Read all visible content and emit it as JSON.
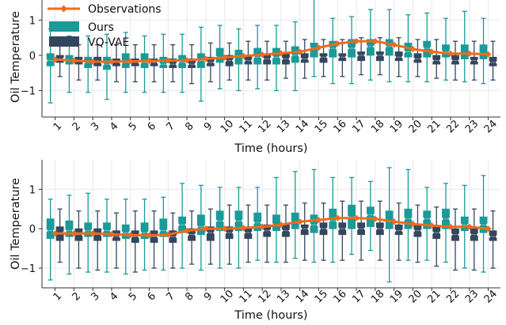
{
  "colors": {
    "ours": "#1a9a98",
    "vqvae": "#34465e",
    "observations": "#f26a1b",
    "grid": "#e9e9e9",
    "axis": "#333333"
  },
  "legend": {
    "placement": "top-left",
    "items": [
      {
        "label": "Observations",
        "marker": "line-diamond",
        "color_key": "observations"
      },
      {
        "label": "Ours",
        "marker": "box",
        "color_key": "ours"
      },
      {
        "label": "VQ-VAE",
        "marker": "box",
        "color_key": "vqvae"
      }
    ]
  },
  "chart_data": [
    {
      "type": "box",
      "xlabel": "Time (hours)",
      "ylabel": "Oil Temperature",
      "ylim": [
        -1.75,
        1.75
      ],
      "yticks": [
        -1,
        0,
        1
      ],
      "categories": [
        "1",
        "2",
        "3",
        "4",
        "5",
        "6",
        "7",
        "8",
        "9",
        "10",
        "11",
        "12",
        "13",
        "14",
        "15",
        "16",
        "17",
        "18",
        "19",
        "20",
        "21",
        "22",
        "23",
        "24"
      ],
      "grid": true,
      "legend": "top-left",
      "observations": {
        "name": "Observations",
        "values": [
          -0.12,
          -0.15,
          -0.18,
          -0.18,
          -0.17,
          -0.16,
          -0.15,
          -0.14,
          -0.1,
          -0.06,
          -0.02,
          0.02,
          0.06,
          0.1,
          0.22,
          0.33,
          0.4,
          0.4,
          0.3,
          0.18,
          0.1,
          0.05,
          0.05,
          0.03
        ]
      },
      "series": [
        {
          "name": "Ours",
          "stats": [
            {
              "wlo": -1.35,
              "q1": -0.3,
              "med": -0.15,
              "q3": 0.05,
              "whi": 0.75
            },
            {
              "wlo": -1.05,
              "q1": -0.25,
              "med": -0.15,
              "q3": 0.0,
              "whi": 0.55
            },
            {
              "wlo": -1.05,
              "q1": -0.35,
              "med": -0.2,
              "q3": -0.05,
              "whi": 0.55
            },
            {
              "wlo": -1.25,
              "q1": -0.4,
              "med": -0.25,
              "q3": -0.05,
              "whi": 0.6
            },
            {
              "wlo": -1.05,
              "q1": -0.35,
              "med": -0.2,
              "q3": 0.05,
              "whi": 0.65
            },
            {
              "wlo": -1.05,
              "q1": -0.35,
              "med": -0.2,
              "q3": 0.05,
              "whi": 0.55
            },
            {
              "wlo": -1.05,
              "q1": -0.35,
              "med": -0.25,
              "q3": -0.05,
              "whi": 0.6
            },
            {
              "wlo": -1.05,
              "q1": -0.35,
              "med": -0.2,
              "q3": 0.0,
              "whi": 0.6
            },
            {
              "wlo": -1.3,
              "q1": -0.35,
              "med": -0.15,
              "q3": 0.05,
              "whi": 0.8
            },
            {
              "wlo": -0.95,
              "q1": -0.2,
              "med": -0.05,
              "q3": 0.2,
              "whi": 0.85
            },
            {
              "wlo": -1.0,
              "q1": -0.25,
              "med": -0.05,
              "q3": 0.15,
              "whi": 0.75
            },
            {
              "wlo": -0.95,
              "q1": -0.25,
              "med": -0.05,
              "q3": 0.2,
              "whi": 0.85
            },
            {
              "wlo": -1.0,
              "q1": -0.25,
              "med": -0.05,
              "q3": 0.2,
              "whi": 0.85
            },
            {
              "wlo": -1.0,
              "q1": -0.2,
              "med": 0.0,
              "q3": 0.25,
              "whi": 0.95
            },
            {
              "wlo": -0.6,
              "q1": -0.05,
              "med": 0.2,
              "q3": 0.35,
              "whi": 1.75
            },
            {
              "wlo": -0.8,
              "q1": -0.05,
              "med": 0.2,
              "q3": 0.4,
              "whi": 1.05
            },
            {
              "wlo": -0.8,
              "q1": -0.05,
              "med": 0.2,
              "q3": 0.45,
              "whi": 1.1
            },
            {
              "wlo": -0.7,
              "q1": 0.0,
              "med": 0.25,
              "q3": 0.45,
              "whi": 1.3
            },
            {
              "wlo": -0.75,
              "q1": 0.0,
              "med": 0.25,
              "q3": 0.45,
              "whi": 1.3
            },
            {
              "wlo": -0.75,
              "q1": -0.05,
              "med": 0.1,
              "q3": 0.35,
              "whi": 1.15
            },
            {
              "wlo": -0.75,
              "q1": -0.05,
              "med": 0.2,
              "q3": 0.4,
              "whi": 1.2
            },
            {
              "wlo": -0.7,
              "q1": -0.05,
              "med": 0.1,
              "q3": 0.3,
              "whi": 1.05
            },
            {
              "wlo": -0.75,
              "q1": -0.1,
              "med": 0.05,
              "q3": 0.3,
              "whi": 1.25
            },
            {
              "wlo": -0.8,
              "q1": -0.1,
              "med": 0.05,
              "q3": 0.3,
              "whi": 1.05
            }
          ]
        },
        {
          "name": "VQ-VAE",
          "stats": [
            {
              "wlo": -0.6,
              "q1": -0.2,
              "med": -0.1,
              "q3": 0.0,
              "whi": 0.35
            },
            {
              "wlo": -0.7,
              "q1": -0.25,
              "med": -0.15,
              "q3": -0.05,
              "whi": 0.3
            },
            {
              "wlo": -0.7,
              "q1": -0.3,
              "med": -0.2,
              "q3": -0.05,
              "whi": 0.3
            },
            {
              "wlo": -0.75,
              "q1": -0.3,
              "med": -0.2,
              "q3": -0.1,
              "whi": 0.3
            },
            {
              "wlo": -0.75,
              "q1": -0.3,
              "med": -0.2,
              "q3": -0.1,
              "whi": 0.3
            },
            {
              "wlo": -0.75,
              "q1": -0.3,
              "med": -0.2,
              "q3": -0.1,
              "whi": 0.3
            },
            {
              "wlo": -0.75,
              "q1": -0.35,
              "med": -0.25,
              "q3": -0.1,
              "whi": 0.3
            },
            {
              "wlo": -0.8,
              "q1": -0.35,
              "med": -0.25,
              "q3": -0.1,
              "whi": 0.3
            },
            {
              "wlo": -0.75,
              "q1": -0.3,
              "med": -0.2,
              "q3": -0.05,
              "whi": 0.35
            },
            {
              "wlo": -0.7,
              "q1": -0.3,
              "med": -0.15,
              "q3": 0.0,
              "whi": 0.35
            },
            {
              "wlo": -0.7,
              "q1": -0.25,
              "med": -0.15,
              "q3": 0.0,
              "whi": 0.4
            },
            {
              "wlo": -0.7,
              "q1": -0.25,
              "med": -0.1,
              "q3": 0.0,
              "whi": 0.4
            },
            {
              "wlo": -0.65,
              "q1": -0.25,
              "med": -0.1,
              "q3": 0.05,
              "whi": 0.4
            },
            {
              "wlo": -0.65,
              "q1": -0.2,
              "med": -0.1,
              "q3": 0.05,
              "whi": 0.45
            },
            {
              "wlo": -0.6,
              "q1": -0.2,
              "med": -0.05,
              "q3": 0.05,
              "whi": 0.45
            },
            {
              "wlo": -0.6,
              "q1": -0.15,
              "med": -0.05,
              "q3": 0.05,
              "whi": 0.45
            },
            {
              "wlo": -0.55,
              "q1": -0.15,
              "med": 0.0,
              "q3": 0.1,
              "whi": 0.5
            },
            {
              "wlo": -0.55,
              "q1": -0.15,
              "med": 0.0,
              "q3": 0.1,
              "whi": 0.5
            },
            {
              "wlo": -0.6,
              "q1": -0.15,
              "med": -0.05,
              "q3": 0.1,
              "whi": 0.5
            },
            {
              "wlo": -0.6,
              "q1": -0.2,
              "med": -0.1,
              "q3": 0.05,
              "whi": 0.45
            },
            {
              "wlo": -0.65,
              "q1": -0.25,
              "med": -0.15,
              "q3": 0.0,
              "whi": 0.45
            },
            {
              "wlo": -0.7,
              "q1": -0.25,
              "med": -0.15,
              "q3": 0.0,
              "whi": 0.4
            },
            {
              "wlo": -0.7,
              "q1": -0.25,
              "med": -0.15,
              "q3": -0.05,
              "whi": 0.4
            },
            {
              "wlo": -0.7,
              "q1": -0.3,
              "med": -0.2,
              "q3": -0.05,
              "whi": 0.4
            }
          ]
        }
      ]
    },
    {
      "type": "box",
      "xlabel": "Time (hours)",
      "ylabel": "Oil Temperature",
      "ylim": [
        -1.5,
        1.75
      ],
      "yticks": [
        -1,
        0,
        1
      ],
      "categories": [
        "1",
        "2",
        "3",
        "4",
        "5",
        "6",
        "7",
        "8",
        "9",
        "10",
        "11",
        "12",
        "13",
        "14",
        "15",
        "16",
        "17",
        "18",
        "19",
        "20",
        "21",
        "22",
        "23",
        "24"
      ],
      "grid": true,
      "observations": {
        "name": "Observations",
        "values": [
          -0.12,
          -0.12,
          -0.12,
          -0.14,
          -0.16,
          -0.17,
          -0.15,
          -0.05,
          0.0,
          0.0,
          0.02,
          0.05,
          0.1,
          0.18,
          0.22,
          0.27,
          0.27,
          0.25,
          0.18,
          0.12,
          0.08,
          0.05,
          0.05,
          0.0
        ]
      },
      "series": [
        {
          "name": "Ours",
          "stats": [
            {
              "wlo": -1.3,
              "q1": -0.25,
              "med": -0.05,
              "q3": 0.25,
              "whi": 0.75
            },
            {
              "wlo": -1.15,
              "q1": -0.2,
              "med": -0.05,
              "q3": 0.2,
              "whi": 0.85
            },
            {
              "wlo": -1.1,
              "q1": -0.2,
              "med": -0.05,
              "q3": 0.15,
              "whi": 0.9
            },
            {
              "wlo": -1.1,
              "q1": -0.2,
              "med": -0.05,
              "q3": 0.15,
              "whi": 0.75
            },
            {
              "wlo": -1.15,
              "q1": -0.25,
              "med": -0.1,
              "q3": 0.1,
              "whi": 0.75
            },
            {
              "wlo": -1.05,
              "q1": -0.25,
              "med": -0.1,
              "q3": 0.15,
              "whi": 0.75
            },
            {
              "wlo": -1.05,
              "q1": -0.2,
              "med": -0.05,
              "q3": 0.25,
              "whi": 0.8
            },
            {
              "wlo": -1.0,
              "q1": -0.1,
              "med": 0.1,
              "q3": 0.3,
              "whi": 1.15
            },
            {
              "wlo": -1.05,
              "q1": -0.15,
              "med": 0.05,
              "q3": 0.35,
              "whi": 1.1
            },
            {
              "wlo": -1.0,
              "q1": -0.05,
              "med": 0.2,
              "q3": 0.45,
              "whi": 1.05
            },
            {
              "wlo": -1.0,
              "q1": -0.05,
              "med": 0.2,
              "q3": 0.45,
              "whi": 1.05
            },
            {
              "wlo": -0.8,
              "q1": -0.05,
              "med": 0.15,
              "q3": 0.4,
              "whi": 1.05
            },
            {
              "wlo": -0.85,
              "q1": -0.05,
              "med": 0.1,
              "q3": 0.35,
              "whi": 1.3
            },
            {
              "wlo": -0.75,
              "q1": 0.0,
              "med": 0.15,
              "q3": 0.4,
              "whi": 1.45
            },
            {
              "wlo": -0.85,
              "q1": -0.1,
              "med": 0.1,
              "q3": 0.35,
              "whi": 1.5
            },
            {
              "wlo": -0.85,
              "q1": 0.0,
              "med": 0.2,
              "q3": 0.5,
              "whi": 1.3
            },
            {
              "wlo": -0.65,
              "q1": 0.0,
              "med": 0.3,
              "q3": 0.6,
              "whi": 1.3
            },
            {
              "wlo": -0.55,
              "q1": 0.05,
              "med": 0.35,
              "q3": 0.55,
              "whi": 1.2
            },
            {
              "wlo": -1.35,
              "q1": 0.0,
              "med": 0.2,
              "q3": 0.45,
              "whi": 1.55
            },
            {
              "wlo": -0.8,
              "q1": 0.0,
              "med": 0.25,
              "q3": 0.5,
              "whi": 1.5
            },
            {
              "wlo": -0.8,
              "q1": 0.0,
              "med": 0.25,
              "q3": 0.45,
              "whi": 1.05
            },
            {
              "wlo": -0.85,
              "q1": 0.0,
              "med": 0.25,
              "q3": 0.5,
              "whi": 1.15
            },
            {
              "wlo": -1.0,
              "q1": -0.05,
              "med": 0.1,
              "q3": 0.3,
              "whi": 1.1
            },
            {
              "wlo": -1.1,
              "q1": -0.1,
              "med": 0.1,
              "q3": 0.3,
              "whi": 1.35
            }
          ]
        },
        {
          "name": "VQ-VAE",
          "stats": [
            {
              "wlo": -0.85,
              "q1": -0.3,
              "med": -0.1,
              "q3": 0.05,
              "whi": 0.5
            },
            {
              "wlo": -1.0,
              "q1": -0.3,
              "med": -0.15,
              "q3": 0.0,
              "whi": 0.45
            },
            {
              "wlo": -1.05,
              "q1": -0.3,
              "med": -0.15,
              "q3": 0.0,
              "whi": 0.45
            },
            {
              "wlo": -1.0,
              "q1": -0.3,
              "med": -0.2,
              "q3": -0.05,
              "whi": 0.4
            },
            {
              "wlo": -1.1,
              "q1": -0.35,
              "med": -0.2,
              "q3": -0.05,
              "whi": 0.45
            },
            {
              "wlo": -1.0,
              "q1": -0.35,
              "med": -0.2,
              "q3": -0.05,
              "whi": 0.45
            },
            {
              "wlo": -1.0,
              "q1": -0.35,
              "med": -0.2,
              "q3": -0.05,
              "whi": 0.4
            },
            {
              "wlo": -0.9,
              "q1": -0.3,
              "med": -0.15,
              "q3": 0.0,
              "whi": 0.45
            },
            {
              "wlo": -0.9,
              "q1": -0.3,
              "med": -0.1,
              "q3": 0.05,
              "whi": 0.5
            },
            {
              "wlo": -0.9,
              "q1": -0.25,
              "med": -0.1,
              "q3": 0.05,
              "whi": 0.6
            },
            {
              "wlo": -0.85,
              "q1": -0.25,
              "med": -0.1,
              "q3": 0.05,
              "whi": 0.6
            },
            {
              "wlo": -0.85,
              "q1": -0.2,
              "med": -0.05,
              "q3": 0.1,
              "whi": 0.6
            },
            {
              "wlo": -0.85,
              "q1": -0.2,
              "med": -0.05,
              "q3": 0.1,
              "whi": 0.6
            },
            {
              "wlo": -0.8,
              "q1": -0.15,
              "med": 0.0,
              "q3": 0.1,
              "whi": 0.65
            },
            {
              "wlo": -0.8,
              "q1": -0.15,
              "med": 0.0,
              "q3": 0.15,
              "whi": 0.65
            },
            {
              "wlo": -0.8,
              "q1": -0.15,
              "med": 0.0,
              "q3": 0.15,
              "whi": 0.7
            },
            {
              "wlo": -0.8,
              "q1": -0.15,
              "med": 0.0,
              "q3": 0.15,
              "whi": 0.7
            },
            {
              "wlo": -0.8,
              "q1": -0.15,
              "med": 0.0,
              "q3": 0.15,
              "whi": 0.7
            },
            {
              "wlo": -0.8,
              "q1": -0.15,
              "med": -0.05,
              "q3": 0.1,
              "whi": 0.65
            },
            {
              "wlo": -0.85,
              "q1": -0.2,
              "med": -0.05,
              "q3": 0.1,
              "whi": 0.6
            },
            {
              "wlo": -0.95,
              "q1": -0.25,
              "med": -0.1,
              "q3": 0.05,
              "whi": 0.55
            },
            {
              "wlo": -1.05,
              "q1": -0.3,
              "med": -0.15,
              "q3": 0.0,
              "whi": 0.5
            },
            {
              "wlo": -1.05,
              "q1": -0.3,
              "med": -0.15,
              "q3": 0.0,
              "whi": 0.5
            },
            {
              "wlo": -1.0,
              "q1": -0.3,
              "med": -0.2,
              "q3": -0.05,
              "whi": 0.45
            }
          ]
        }
      ]
    }
  ]
}
